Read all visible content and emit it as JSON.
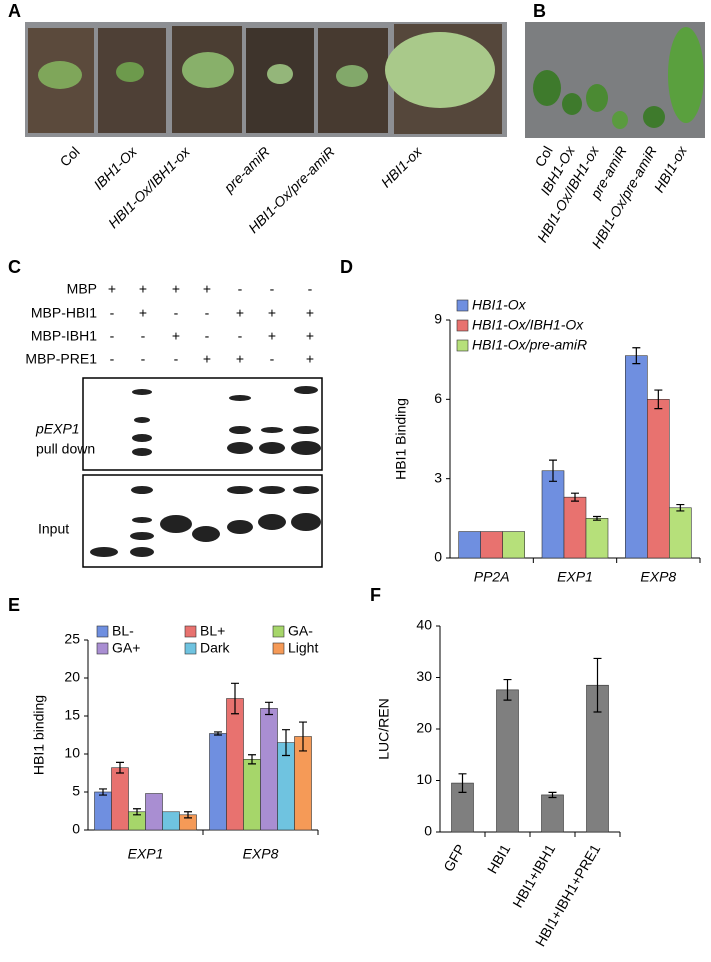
{
  "panels": {
    "A": {
      "label": "A",
      "samples": [
        "Col",
        "IBH1-Ox",
        "HBI1-Ox/IBH1-ox",
        "pre-amiR",
        "HBI1-Ox/pre-amiR",
        "HBI1-ox"
      ]
    },
    "B": {
      "label": "B",
      "samples": [
        "Col",
        "IBH1-Ox",
        "HBI1-Ox/IBH1-ox",
        "pre-amiR",
        "HBI1-Ox/pre-amiR",
        "HBI1-ox"
      ]
    },
    "C": {
      "label": "C",
      "rows": [
        {
          "name": "MBP",
          "signs": [
            "+",
            "+",
            "+",
            "+",
            "-",
            "-",
            "-"
          ]
        },
        {
          "name": "MBP-HBI1",
          "signs": [
            "-",
            "+",
            "-",
            "-",
            "+",
            "+",
            "+"
          ]
        },
        {
          "name": "MBP-IBH1",
          "signs": [
            "-",
            "-",
            "+",
            "-",
            "-",
            "+",
            "+"
          ]
        },
        {
          "name": "MBP-PRE1",
          "signs": [
            "-",
            "-",
            "-",
            "+",
            "+",
            "-",
            "+"
          ]
        }
      ],
      "pulldown_gene": "pEXP1",
      "pulldown_text": "pull down",
      "input_text": "Input"
    },
    "D": {
      "label": "D"
    },
    "E": {
      "label": "E"
    },
    "F": {
      "label": "F"
    }
  },
  "chart_data": [
    {
      "type": "bar",
      "ylabel": "HBI1 Binding",
      "categories": [
        "PP2A",
        "EXP1",
        "EXP8"
      ],
      "ylim": [
        0,
        9
      ],
      "yticks": [
        0,
        3,
        6,
        9
      ],
      "series": [
        {
          "name": "HBI1-Ox",
          "color": "#6f8fe0",
          "values": [
            1,
            3.3,
            7.65
          ],
          "errors": [
            null,
            0.4,
            0.3
          ]
        },
        {
          "name": "HBI1-Ox/IBH1-Ox",
          "color": "#e8726f",
          "values": [
            1,
            2.3,
            6.0
          ],
          "errors": [
            null,
            0.15,
            0.35
          ]
        },
        {
          "name": "HBI1-Ox/pre-amiR",
          "color": "#b6e07a",
          "values": [
            1,
            1.5,
            1.9
          ],
          "errors": [
            null,
            0.07,
            0.12
          ]
        }
      ]
    },
    {
      "type": "bar",
      "ylabel": "HBI1 binding",
      "categories": [
        "EXP1",
        "EXP8"
      ],
      "ylim": [
        0,
        25
      ],
      "yticks": [
        0,
        5,
        10,
        15,
        20,
        25
      ],
      "series": [
        {
          "name": "BL-",
          "color": "#6f8fe0",
          "values": [
            5.0,
            12.7
          ],
          "errors": [
            0.4,
            0.2
          ]
        },
        {
          "name": "BL+",
          "color": "#e8726f",
          "values": [
            8.2,
            17.3
          ],
          "errors": [
            0.7,
            2.0
          ]
        },
        {
          "name": "GA-",
          "color": "#a6d66a",
          "values": [
            2.4,
            9.3
          ],
          "errors": [
            0.4,
            0.6
          ]
        },
        {
          "name": "GA+",
          "color": "#a98ed2",
          "values": [
            4.8,
            16.0
          ],
          "errors": [
            null,
            0.8
          ]
        },
        {
          "name": "Dark",
          "color": "#6fc3e0",
          "values": [
            2.4,
            11.5
          ],
          "errors": [
            null,
            1.7
          ]
        },
        {
          "name": "Light",
          "color": "#f59a57",
          "values": [
            2.0,
            12.3
          ],
          "errors": [
            0.4,
            1.9
          ]
        }
      ]
    },
    {
      "type": "bar",
      "ylabel": "LUC/REN",
      "categories": [
        "GFP",
        "HBI1",
        "HBI1+IBH1",
        "HBI1+IBH1+PRE1"
      ],
      "ylim": [
        0,
        40
      ],
      "yticks": [
        0,
        10,
        20,
        30,
        40
      ],
      "series": [
        {
          "color": "#7f7f7f",
          "values": [
            9.5,
            27.6,
            7.2,
            28.5
          ],
          "errors": [
            1.8,
            2.0,
            0.5,
            5.2
          ]
        }
      ]
    }
  ]
}
